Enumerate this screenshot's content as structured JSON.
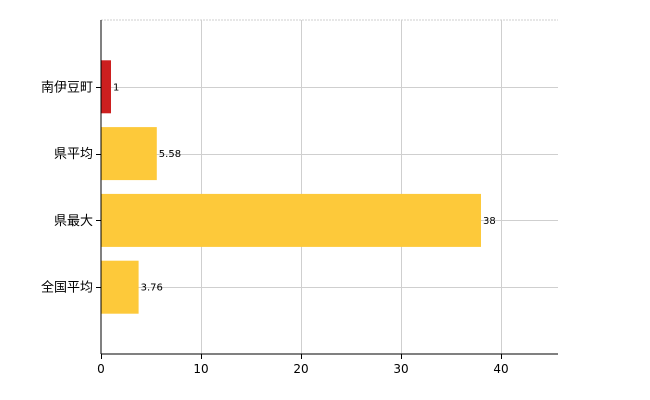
{
  "chart_data": {
    "type": "bar",
    "orientation": "horizontal",
    "categories": [
      "南伊豆町",
      "県平均",
      "県最大",
      "全国平均"
    ],
    "values": [
      1,
      5.58,
      38,
      3.76
    ],
    "value_labels": [
      "1",
      "5.58",
      "38",
      "3.76"
    ],
    "bar_colors": [
      "#cc1f1f",
      "#fdc93a",
      "#fdc93a",
      "#fdc93a"
    ],
    "xlim": [
      0,
      45.7
    ],
    "xticks": [
      0,
      10,
      20,
      30,
      40
    ],
    "grid": true,
    "title": "",
    "xlabel": "",
    "ylabel": ""
  },
  "colors": {
    "highlight": "#cc1f1f",
    "bar": "#fdc93a",
    "grid": "#cfcfcf",
    "axis": "#000000"
  }
}
